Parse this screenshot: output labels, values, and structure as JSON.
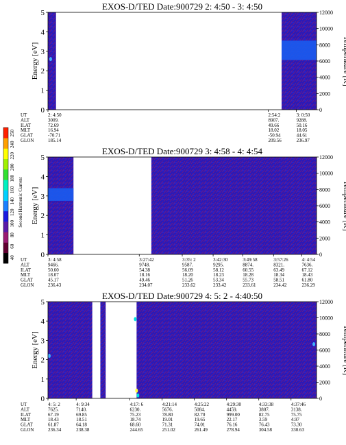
{
  "chart_data": [
    {
      "type": "heatmap",
      "title": "EXOS-D/TED   Date:900729  2: 4:50 - 3: 4:50",
      "ylabel": "Energy [eV]",
      "y2label": "Temperature [K]",
      "ylim": [
        0,
        5
      ],
      "yticks": [
        "0",
        "1",
        "2",
        "3",
        "4",
        "5"
      ],
      "y2lim": [
        0,
        12000
      ],
      "y2ticks": [
        "0",
        "2000",
        "4000",
        "6000",
        "8000",
        "10000",
        "12000"
      ],
      "data_spans": [
        [
          0.0,
          0.03
        ],
        [
          0.87,
          1.0
        ]
      ],
      "band": {
        "span": [
          0.87,
          1.0
        ],
        "energy_range": [
          2.55,
          3.55
        ],
        "color": "#1a5cf0"
      },
      "spots": [
        {
          "x": 0.01,
          "energy": 2.6,
          "color": "#3fb0ff"
        }
      ],
      "columns": [
        {
          "x": 0.0,
          "UT": "2: 4:50",
          "ALT": "3009.",
          "ILAT": "72.69",
          "MLT": "16.94",
          "GLAT": "-70.71",
          "GLON": "185.14"
        },
        {
          "x": 0.82,
          "UT": "2:54:2",
          "ALT": "8907.",
          "ILAT": "49.66",
          "MLT": "18.02",
          "GLAT": "-50.94",
          "GLON": "209.56"
        },
        {
          "x": 0.925,
          "UT": "3: 0:50",
          "ALT": "9288.",
          "ILAT": "50.16",
          "MLT": "18.05",
          "GLAT": "44.61",
          "GLON": "236.97"
        }
      ]
    },
    {
      "type": "heatmap",
      "title": "EXOS-D/TED   Date:900729  3: 4:58 - 4: 4:54",
      "ylabel": "Energy [eV]",
      "y2label": "Temperature [K]",
      "ylim": [
        0,
        5
      ],
      "yticks": [
        "0",
        "1",
        "2",
        "3",
        "4",
        "5"
      ],
      "y2lim": [
        0,
        12000
      ],
      "y2ticks": [
        "0",
        "2000",
        "4000",
        "6000",
        "8000",
        "10000",
        "12000"
      ],
      "data_spans": [
        [
          0.0,
          0.095
        ],
        [
          0.385,
          1.0
        ]
      ],
      "band": {
        "span": [
          0.0,
          0.095
        ],
        "energy_range": [
          2.75,
          3.4
        ],
        "color": "#1a5cf0"
      },
      "spots": [],
      "columns": [
        {
          "x": 0.0,
          "UT": "3: 4:58",
          "ALT": "9466.",
          "ILAT": "50.60",
          "MLT": "18.07",
          "GLAT": "45.17",
          "GLON": "236.43"
        },
        {
          "x": 0.34,
          "UT": "3:27:42",
          "ALT": "9748.",
          "ILAT": "54.38",
          "MLT": "18.16",
          "GLAT": "49.46",
          "GLON": "234.07"
        },
        {
          "x": 0.5,
          "UT": "3:35: 2",
          "ALT": "9587.",
          "ILAT": "56.09",
          "MLT": "18.20",
          "GLAT": "51.26",
          "GLON": "233.62"
        },
        {
          "x": 0.615,
          "UT": "3:42:30",
          "ALT": "9295.",
          "ILAT": "58.12",
          "MLT": "18.23",
          "GLAT": "53.34",
          "GLON": "233.42"
        },
        {
          "x": 0.725,
          "UT": "3:49:58",
          "ALT": "8874.",
          "ILAT": "60.55",
          "MLT": "18.28",
          "GLAT": "55.73",
          "GLON": "233.61"
        },
        {
          "x": 0.84,
          "UT": "3:57:26",
          "ALT": "8321.",
          "ILAT": "63.49",
          "MLT": "18.34",
          "GLAT": "58.51",
          "GLON": "234.42"
        },
        {
          "x": 0.945,
          "UT": "4: 4:54",
          "ALT": "7636.",
          "ILAT": "67.12",
          "MLT": "18.43",
          "GLAT": "61.80",
          "GLON": "236.29"
        }
      ]
    },
    {
      "type": "heatmap",
      "title": "EXOS-D/TED   Date:900729  4: 5: 2 - 4:40:50",
      "ylabel": "Energy [eV]",
      "y2label": "Temperature [K]",
      "ylim": [
        0,
        5
      ],
      "yticks": [
        "0",
        "1",
        "2",
        "3",
        "4",
        "5"
      ],
      "y2lim": [
        0,
        12000
      ],
      "y2ticks": [
        "0",
        "2000",
        "4000",
        "6000",
        "8000",
        "10000",
        "12000"
      ],
      "data_spans": [
        [
          0.0,
          0.165
        ],
        [
          0.195,
          0.215
        ],
        [
          0.33,
          1.0
        ]
      ],
      "band": null,
      "spots": [
        {
          "x": 0.005,
          "energy": 2.2,
          "color": "#3fb0ff"
        },
        {
          "x": 0.325,
          "energy": 4.1,
          "color": "#00e0e0"
        },
        {
          "x": 0.33,
          "energy": 0.4,
          "color": "#ffff40"
        },
        {
          "x": 0.335,
          "energy": 0.15,
          "color": "#00e0e0"
        },
        {
          "x": 0.99,
          "energy": 2.8,
          "color": "#3fb0ff"
        }
      ],
      "columns": [
        {
          "x": 0.0,
          "UT": "4: 5: 2",
          "ALT": "7625.",
          "ILAT": "67.19",
          "MLT": "18.43",
          "GLAT": "61.87",
          "GLON": "236.34"
        },
        {
          "x": 0.105,
          "UT": "4: 9:34",
          "ALT": "7140.",
          "ILAT": "69.85",
          "MLT": "18.51",
          "GLAT": "64.18",
          "GLON": "238.38"
        },
        {
          "x": 0.305,
          "UT": "4:17: 6",
          "ALT": "6230.",
          "ILAT": "75.23",
          "MLT": "18.74",
          "GLAT": "68.60",
          "GLON": "244.65"
        },
        {
          "x": 0.425,
          "UT": "4:21:14",
          "ALT": "5676.",
          "ILAT": "78.80",
          "MLT": "19.01",
          "GLAT": "71.31",
          "GLON": "251.02"
        },
        {
          "x": 0.545,
          "UT": "4:25:22",
          "ALT": "5084.",
          "ILAT": "82.70",
          "MLT": "19.65",
          "GLAT": "74.01",
          "GLON": "261.49"
        },
        {
          "x": 0.665,
          "UT": "4:29:30",
          "ALT": "4459.",
          "ILAT": "999.00",
          "MLT": "22.17",
          "GLAT": "76.16",
          "GLON": "278.94"
        },
        {
          "x": 0.785,
          "UT": "4:33:38",
          "ALT": "3807.",
          "ILAT": "82.75",
          "MLT": "3.59",
          "GLAT": "76.43",
          "GLON": "304.58"
        },
        {
          "x": 0.905,
          "UT": "4:37:46",
          "ALT": "3138.",
          "ILAT": "75.75",
          "MLT": "4.97",
          "GLAT": "73.30",
          "GLON": "330.63"
        }
      ]
    }
  ],
  "row_labels": [
    "UT",
    "ALT",
    "ILAT",
    "MLT",
    "GLAT",
    "GLON"
  ],
  "colorbar": {
    "label": "Second Harmonic Current",
    "ticks": [
      "40",
      "60",
      "80",
      "100",
      "120",
      "140",
      "160",
      "180",
      "200",
      "220",
      "240",
      "250"
    ],
    "colors": [
      "#000000",
      "#600030",
      "#9a1a72",
      "#5a1aa8",
      "#1a1ae0",
      "#1a80ff",
      "#00d0ff",
      "#00f0c0",
      "#30e030",
      "#a0f000",
      "#ffff00",
      "#ffa000",
      "#ff2000"
    ]
  },
  "colors": {
    "background": "#2a1ab8",
    "texture": "#7a1a7a",
    "texture2": "#3f2cd8"
  }
}
